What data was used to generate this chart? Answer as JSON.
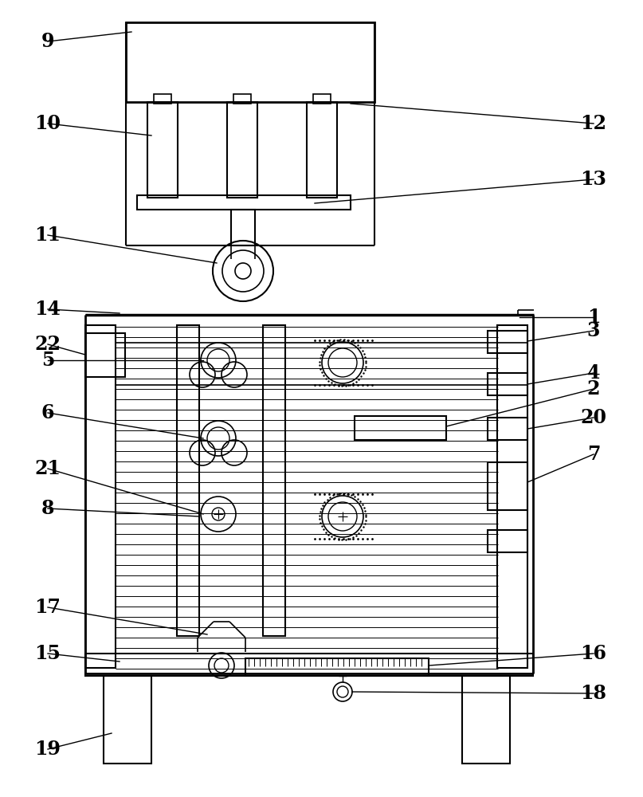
{
  "bg_color": "#ffffff",
  "line_color": "#000000",
  "label_color": "#000000",
  "fig_width": 8.07,
  "fig_height": 10.0
}
